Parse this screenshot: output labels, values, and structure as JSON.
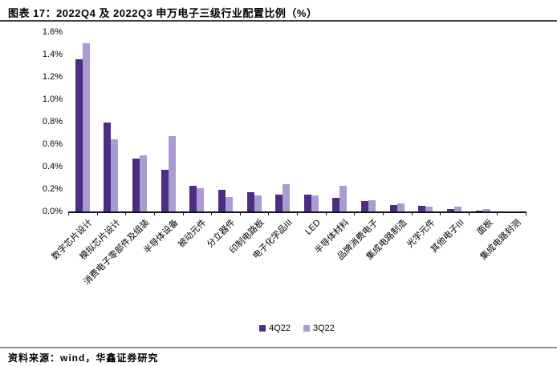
{
  "figure": {
    "title": "图表 17：2022Q4 及 2022Q3 申万电子三级行业配置比例（%）",
    "source": "资料来源：wind，华鑫证券研究"
  },
  "colors": {
    "series_4q22": "#4d2c82",
    "series_3q22": "#aa9bd2",
    "axis": "#161616",
    "title_rule": "#3f3f3f",
    "source_rule": "#8c8c8c"
  },
  "chart_data": {
    "type": "bar",
    "title": "2022Q4 及 2022Q3 申万电子三级行业配置比例（%）",
    "categories": [
      "数字芯片设计",
      "模拟芯片设计",
      "消费电子零部件及组装",
      "半导体设备",
      "被动元件",
      "分立器件",
      "印制电路板",
      "电子化学品III",
      "LED",
      "半导体材料",
      "品牌消费电子",
      "集成电路制造",
      "光学元件",
      "其他电子III",
      "面板",
      "集成电路封测"
    ],
    "series": [
      {
        "name": "4Q22",
        "color": "#4d2c82",
        "values": [
          1.36,
          0.79,
          0.47,
          0.37,
          0.23,
          0.19,
          0.17,
          0.15,
          0.15,
          0.12,
          0.09,
          0.06,
          0.05,
          0.02,
          0.01,
          0.0
        ]
      },
      {
        "name": "3Q22",
        "color": "#aa9bd2",
        "values": [
          1.5,
          0.64,
          0.5,
          0.67,
          0.21,
          0.13,
          0.14,
          0.24,
          0.14,
          0.23,
          0.1,
          0.07,
          0.04,
          0.04,
          0.02,
          0.0
        ]
      }
    ],
    "xlabel": "",
    "ylabel": "",
    "ylim": [
      0,
      1.6
    ],
    "ytick_step": 0.2,
    "yticks": [
      "0.0%",
      "0.2%",
      "0.4%",
      "0.6%",
      "0.8%",
      "1.0%",
      "1.2%",
      "1.4%",
      "1.6%"
    ],
    "legend_position": "bottom-center",
    "grid": false,
    "bar_orientation": "vertical"
  }
}
